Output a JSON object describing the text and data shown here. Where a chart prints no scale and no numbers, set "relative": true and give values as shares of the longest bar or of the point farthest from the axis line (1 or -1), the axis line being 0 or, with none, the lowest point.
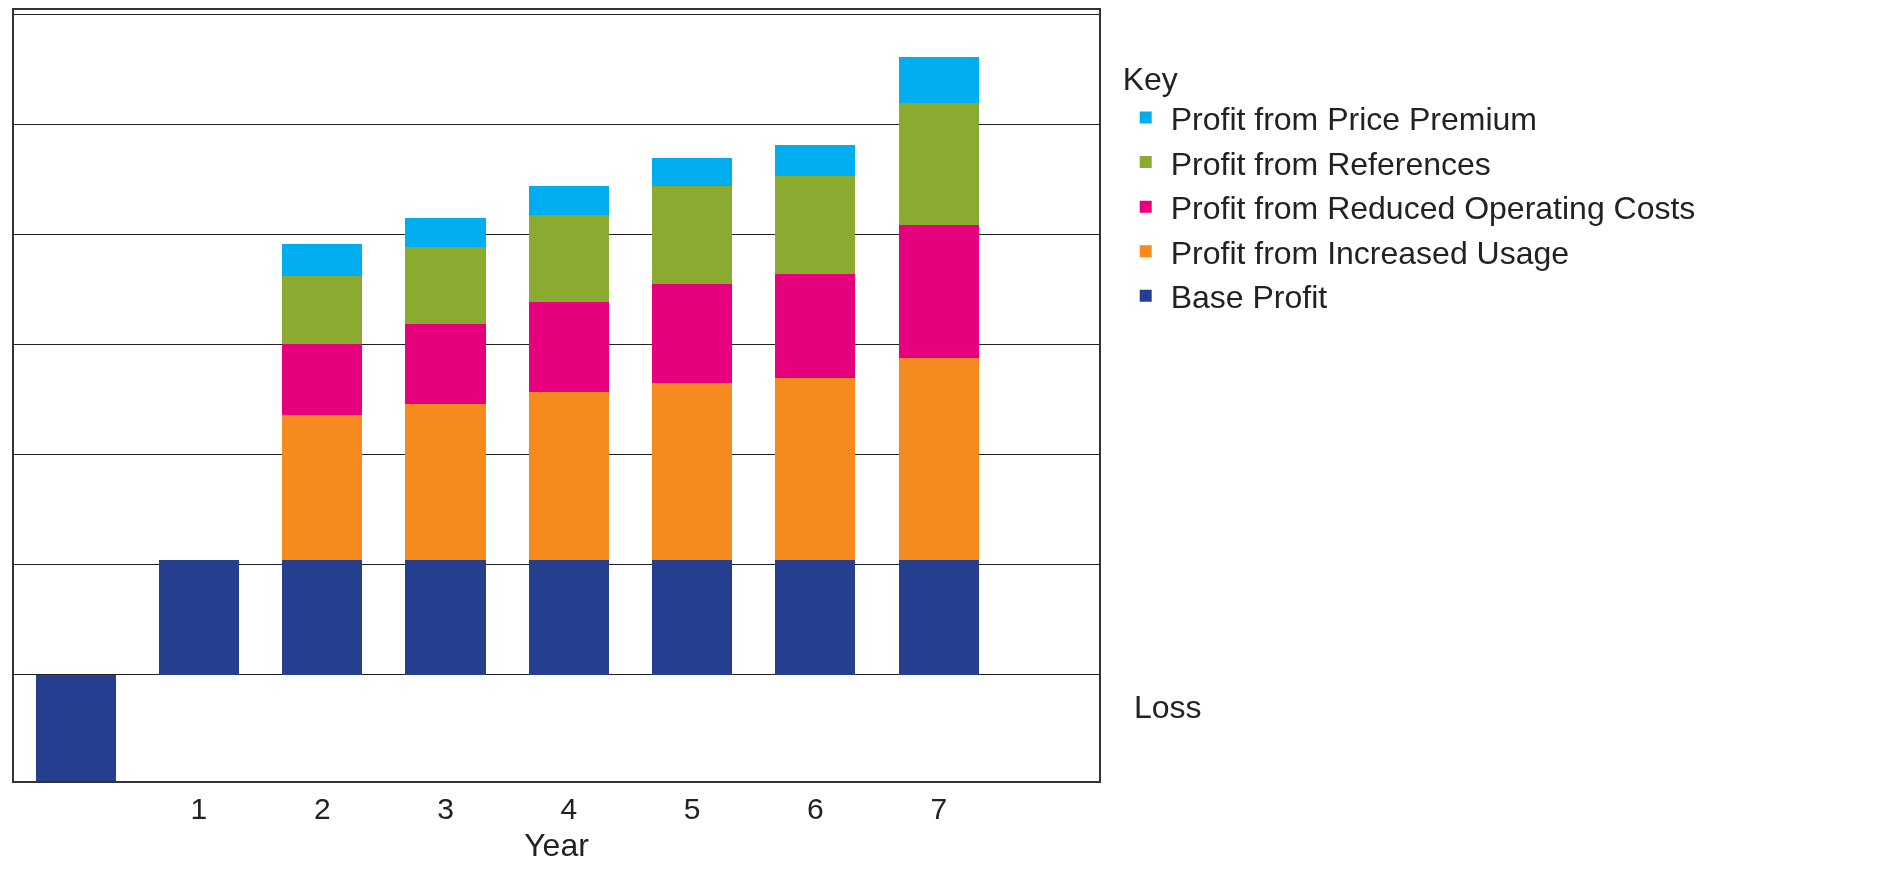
{
  "chart_data": {
    "type": "bar",
    "stacked": true,
    "relative": true,
    "xlabel": "Year",
    "legend_title": "Key",
    "legend": "right",
    "grid": "y",
    "categories": [
      null,
      "1",
      "2",
      "3",
      "4",
      "5",
      "6",
      "7"
    ],
    "series": [
      {
        "name": "Base Profit",
        "color": "#253f8e",
        "values": [
          -0.172,
          0.186,
          0.186,
          0.186,
          0.186,
          0.186,
          0.186,
          0.186
        ]
      },
      {
        "name": "Profit from Increased Usage",
        "color": "#f58a1f",
        "values": [
          null,
          null,
          0.235,
          0.252,
          0.272,
          0.286,
          0.294,
          0.327
        ]
      },
      {
        "name": "Profit from Reduced Operating Costs",
        "color": "#e6007e",
        "values": [
          null,
          null,
          0.114,
          0.129,
          0.145,
          0.16,
          0.168,
          0.215
        ]
      },
      {
        "name": "Profit from References",
        "color": "#8aab2f",
        "values": [
          null,
          null,
          0.11,
          0.125,
          0.141,
          0.159,
          0.159,
          0.198
        ]
      },
      {
        "name": "Profit from Price Premium",
        "color": "#00aeef",
        "values": [
          null,
          null,
          0.053,
          0.047,
          0.047,
          0.045,
          0.051,
          0.074
        ]
      }
    ],
    "annotations": [
      "Loss"
    ]
  }
}
